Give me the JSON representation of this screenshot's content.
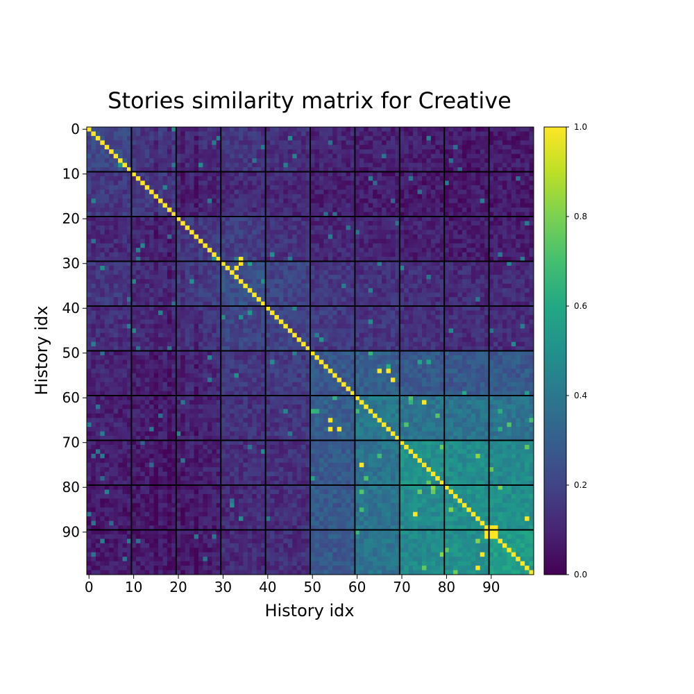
{
  "chart_data": {
    "type": "heatmap",
    "title": "Stories similarity matrix for Creative",
    "xlabel": "History idx",
    "ylabel": "History idx",
    "size": 100,
    "xlim": [
      0,
      99
    ],
    "ylim": [
      0,
      99
    ],
    "x_ticks": [
      "0",
      "10",
      "20",
      "30",
      "40",
      "50",
      "60",
      "70",
      "80",
      "90"
    ],
    "y_ticks": [
      "0",
      "10",
      "20",
      "30",
      "40",
      "50",
      "60",
      "70",
      "80",
      "90"
    ],
    "block_boundaries": [
      9.5,
      19.5,
      29.5,
      39.5,
      49.5,
      59.5,
      69.5,
      79.5,
      89.5
    ],
    "block_means": [
      [
        0.22,
        0.16,
        0.12,
        0.15,
        0.13,
        0.1,
        0.09,
        0.08,
        0.07,
        0.07
      ],
      [
        0.16,
        0.16,
        0.1,
        0.12,
        0.11,
        0.09,
        0.08,
        0.07,
        0.07,
        0.07
      ],
      [
        0.12,
        0.1,
        0.18,
        0.18,
        0.14,
        0.11,
        0.1,
        0.09,
        0.08,
        0.08
      ],
      [
        0.15,
        0.12,
        0.18,
        0.24,
        0.2,
        0.16,
        0.14,
        0.13,
        0.12,
        0.12
      ],
      [
        0.13,
        0.11,
        0.14,
        0.2,
        0.2,
        0.17,
        0.15,
        0.14,
        0.13,
        0.13
      ],
      [
        0.1,
        0.09,
        0.11,
        0.16,
        0.17,
        0.27,
        0.3,
        0.28,
        0.28,
        0.28
      ],
      [
        0.09,
        0.08,
        0.1,
        0.14,
        0.15,
        0.3,
        0.4,
        0.38,
        0.38,
        0.38
      ],
      [
        0.08,
        0.07,
        0.09,
        0.13,
        0.14,
        0.28,
        0.38,
        0.5,
        0.48,
        0.47
      ],
      [
        0.07,
        0.07,
        0.08,
        0.12,
        0.13,
        0.28,
        0.38,
        0.48,
        0.5,
        0.5
      ],
      [
        0.07,
        0.07,
        0.08,
        0.12,
        0.13,
        0.28,
        0.38,
        0.47,
        0.5,
        0.55
      ]
    ],
    "diagonal_value": 1.0,
    "high_offdiagonal_cells": [
      [
        29,
        34,
        1.0
      ],
      [
        30,
        34,
        1.0
      ],
      [
        31,
        33,
        1.0
      ],
      [
        54,
        65,
        1.0
      ],
      [
        54,
        67,
        1.0
      ],
      [
        56,
        68,
        1.0
      ],
      [
        61,
        75,
        1.0
      ],
      [
        65,
        54,
        1.0
      ],
      [
        67,
        54,
        1.0
      ],
      [
        67,
        56,
        1.0
      ],
      [
        75,
        61,
        1.0
      ],
      [
        86,
        73,
        1.0
      ],
      [
        87,
        98,
        1.0
      ],
      [
        89,
        90,
        1.0
      ],
      [
        89,
        91,
        1.0
      ],
      [
        90,
        89,
        1.0
      ],
      [
        90,
        91,
        1.0
      ],
      [
        91,
        89,
        1.0
      ],
      [
        91,
        90,
        1.0
      ],
      [
        91,
        91,
        1.0
      ],
      [
        95,
        88,
        1.0
      ],
      [
        98,
        87,
        1.0
      ]
    ],
    "colormap": "viridis",
    "colorbar": {
      "range": [
        0.0,
        1.0
      ],
      "ticks": [
        "0.0",
        "0.2",
        "0.4",
        "0.6",
        "0.8",
        "1.0"
      ]
    },
    "grid": false,
    "legend": "none"
  }
}
